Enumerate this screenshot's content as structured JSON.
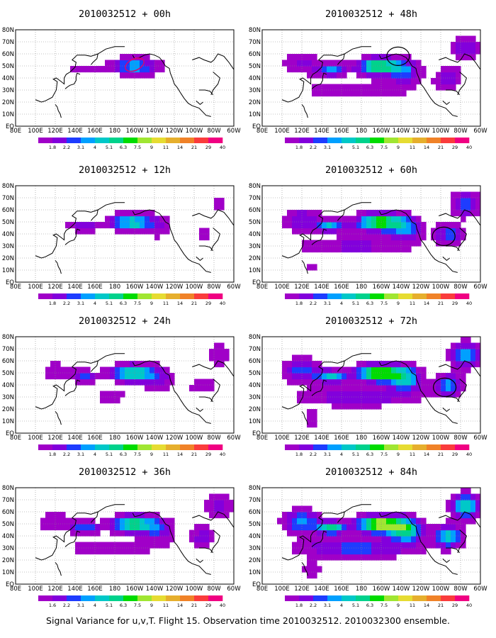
{
  "caption": "Signal Variance for u,v,T. Flight 15. Observation time 2010032512. 2010032300 ensemble.",
  "colorbar": {
    "colors": [
      "#a000c8",
      "#8200dc",
      "#1e3cff",
      "#00a0ff",
      "#00c8c8",
      "#00d28c",
      "#00dc00",
      "#a0e632",
      "#e6dc32",
      "#e6af2d",
      "#f08228",
      "#fa3c3c",
      "#f00082"
    ],
    "labels": [
      "1.8",
      "2.2",
      "3.1",
      "4",
      "5.1",
      "6.3",
      "7.5",
      "9",
      "11",
      "14",
      "21",
      "29",
      "40"
    ],
    "labels_last_panel": [
      "1.6",
      "2.2",
      "3.1",
      "4",
      "5.1",
      "6.3",
      "7.5",
      "9",
      "11",
      "14",
      "21",
      "29",
      "40"
    ]
  },
  "axes": {
    "lon_labels": [
      "80E",
      "100E",
      "120E",
      "140E",
      "160E",
      "180",
      "160W",
      "140W",
      "120W",
      "100W",
      "80W",
      "60W"
    ],
    "lat_labels": [
      "EQ",
      "10N",
      "20N",
      "30N",
      "40N",
      "50N",
      "60N",
      "70N",
      "80N"
    ],
    "lon_range": [
      80,
      300
    ],
    "lat_range": [
      0,
      80
    ]
  },
  "panels": [
    {
      "title": "2010032512 + 00h",
      "level": 0.15,
      "circle": null
    },
    {
      "title": "2010032512 + 48h",
      "level": 0.55,
      "circle": [
        217,
        58
      ]
    },
    {
      "title": "2010032512 + 12h",
      "level": 0.3,
      "circle": null
    },
    {
      "title": "2010032512 + 60h",
      "level": 0.65,
      "circle": [
        263,
        38
      ]
    },
    {
      "title": "2010032512 + 24h",
      "level": 0.4,
      "circle": null
    },
    {
      "title": "2010032512 + 72h",
      "level": 0.75,
      "circle": [
        264,
        38
      ]
    },
    {
      "title": "2010032512 + 36h",
      "level": 0.5,
      "circle": null
    },
    {
      "title": "2010032512 + 84h",
      "level": 0.85,
      "circle": null
    }
  ]
}
